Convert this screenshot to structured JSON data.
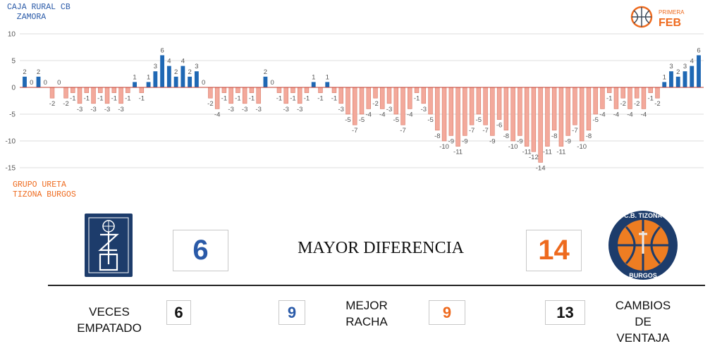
{
  "teams": {
    "team_a": {
      "name": "CAJA RURAL CB\n  ZAMORA",
      "color": "#2a5aa8"
    },
    "team_b": {
      "name": "GRUPO URETA\nTIZONA BURGOS",
      "color": "#ee6a1e"
    }
  },
  "league_logo": {
    "top_text": "PRIMERA",
    "main_text": "FEB",
    "color": "#ee6a1e"
  },
  "team_b_logo": {
    "top_text": "C.B. TIZONA",
    "bottom_text": "BURGOS"
  },
  "chart_data": {
    "type": "bar",
    "y_ticks": [
      10,
      5,
      0,
      -5,
      -10,
      -15
    ],
    "ylim": [
      -15,
      10
    ],
    "grid": true,
    "positive_color": "#1f68b4",
    "negative_color": "#f3a99b",
    "values": [
      2,
      0,
      2,
      0,
      -2,
      0,
      -2,
      -1,
      -3,
      -1,
      -3,
      -1,
      -3,
      -1,
      -3,
      -1,
      1,
      -1,
      1,
      3,
      6,
      4,
      2,
      4,
      2,
      3,
      0,
      -2,
      -4,
      -1,
      -3,
      -1,
      -3,
      -1,
      -3,
      2,
      0,
      -1,
      -3,
      -1,
      -3,
      -1,
      1,
      -1,
      1,
      -1,
      -3,
      -5,
      -7,
      -5,
      -4,
      -2,
      -4,
      -3,
      -5,
      -7,
      -4,
      -1,
      -3,
      -5,
      -8,
      -10,
      -9,
      -11,
      -9,
      -7,
      -5,
      -7,
      -9,
      -6,
      -8,
      -10,
      -9,
      -11,
      -12,
      -14,
      -11,
      -8,
      -11,
      -9,
      -7,
      -10,
      -8,
      -5,
      -4,
      -1,
      -4,
      -2,
      -4,
      -2,
      -4,
      -1,
      -2,
      1,
      3,
      2,
      3,
      4,
      6
    ]
  },
  "stats": {
    "max_diff_label": "MAYOR DIFERENCIA",
    "max_diff_team_a": "6",
    "max_diff_team_b": "14",
    "ties_label_line1": "VECES",
    "ties_label_line2": "EMPATADO",
    "ties_value": "6",
    "streak_label_line1": "MEJOR",
    "streak_label_line2": "RACHA",
    "streak_team_a": "9",
    "streak_team_b": "9",
    "lead_changes_label_line1": "CAMBIOS",
    "lead_changes_label_line2": "DE",
    "lead_changes_label_line3": "VENTAJA",
    "lead_changes_value": "13"
  }
}
